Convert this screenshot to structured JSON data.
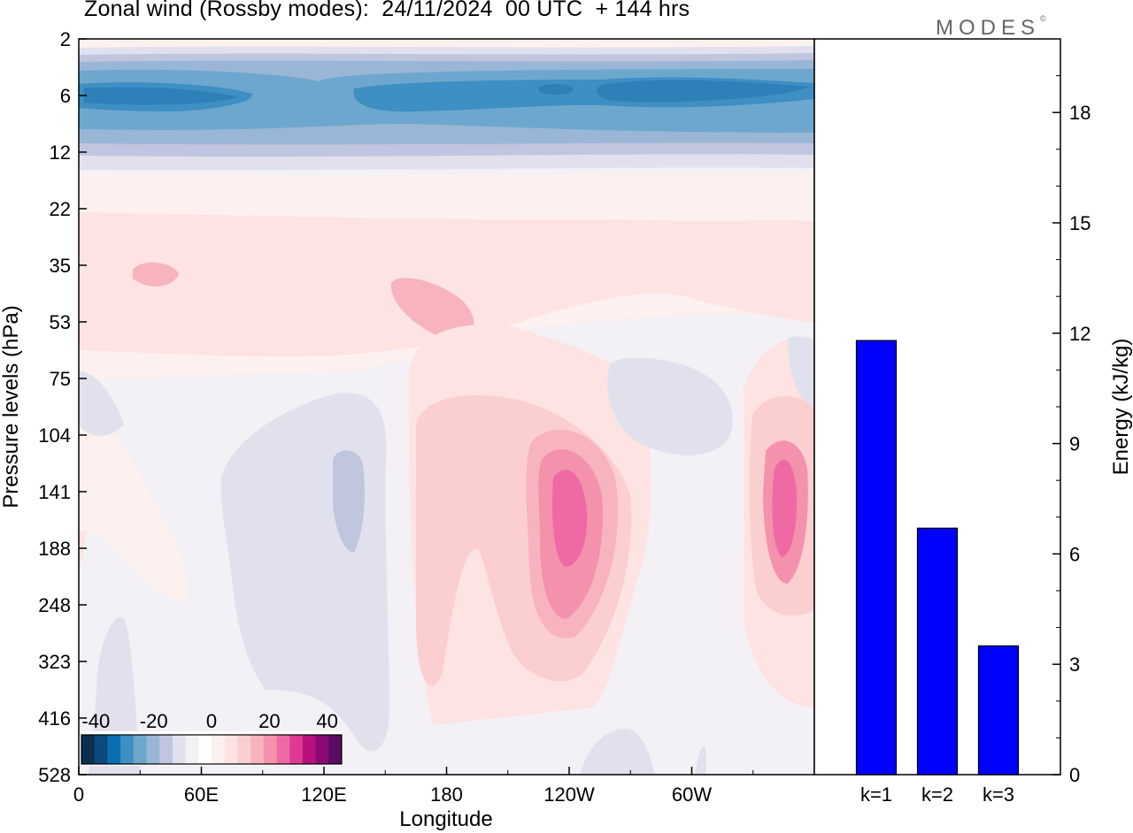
{
  "figure": {
    "title": "Zonal wind (Rossby modes):  24/11/2024  00 UTC  + 144 hrs",
    "brand": "MODES",
    "brand_mark": "©"
  },
  "chart_data": [
    {
      "type": "heatmap",
      "description_of_field": "zonal wind, contoured shading",
      "xlabel": "Longitude",
      "ylabel": "Pressure levels (hPa)",
      "x_ticks": [
        "0",
        "60E",
        "120E",
        "180",
        "120W",
        "60W"
      ],
      "y_ticks": [
        "2",
        "6",
        "12",
        "22",
        "35",
        "53",
        "75",
        "104",
        "141",
        "188",
        "248",
        "323",
        "416",
        "528"
      ],
      "colorbar": {
        "ticks": [
          "-40",
          "-20",
          "0",
          "20",
          "40"
        ],
        "range": [
          -45,
          45
        ],
        "step": 5,
        "colors": [
          "#0b2f4f",
          "#0c4a7d",
          "#0a6fb0",
          "#3d8fc4",
          "#6da7cd",
          "#9ab6d6",
          "#bfc6de",
          "#e1e1ee",
          "#f3f0f6",
          "#ffffff",
          "#fdf1ef",
          "#fde3e1",
          "#fbcfd0",
          "#f7b3be",
          "#f491ad",
          "#ef6aa4",
          "#de3a93",
          "#b8107f",
          "#8a0a74",
          "#5a0c63"
        ]
      }
    },
    {
      "type": "bar",
      "categories": [
        "k=1",
        "k=2",
        "k=3"
      ],
      "values": [
        11.8,
        6.7,
        3.5
      ],
      "ylabel": "Energy (kJ/kg)",
      "ylim": [
        0,
        20
      ],
      "y_ticks": [
        0,
        3,
        6,
        9,
        12,
        15,
        18
      ],
      "bar_color": "#0000ff"
    }
  ]
}
